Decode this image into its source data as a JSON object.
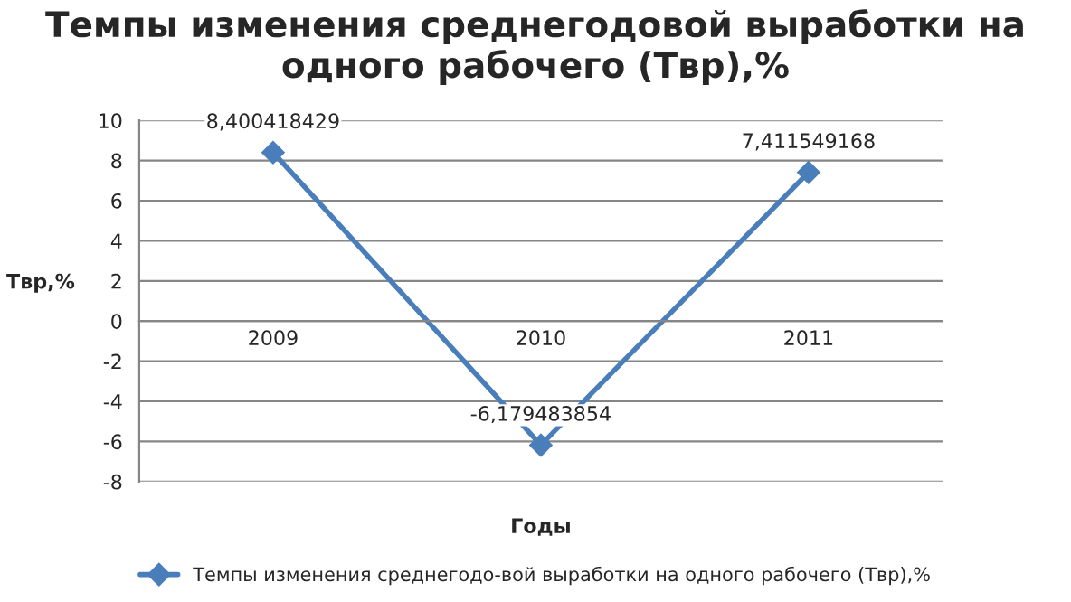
{
  "chart_data": {
    "type": "line",
    "title": "Темпы изменения среднегодовой выработки на одного рабочего (Твр),%",
    "xlabel": "Годы",
    "ylabel": "Твр,%",
    "categories": [
      "2009",
      "2010",
      "2011"
    ],
    "series": [
      {
        "name": "Темпы изменения среднегодо-вой выработки на одного рабочего (Твр),%",
        "color": "#4a7ebb",
        "values": [
          8.400418429,
          -6.179483854,
          7.411549168
        ],
        "value_labels": [
          "8,400418429",
          "-6,179483854",
          "7,411549168"
        ]
      }
    ],
    "ylim": [
      -8,
      10
    ],
    "yticks": [
      -8,
      -6,
      -4,
      -2,
      0,
      2,
      4,
      6,
      8,
      10
    ],
    "grid": "y",
    "legend": "bottom",
    "marker": "diamond",
    "line_style": "solid"
  }
}
